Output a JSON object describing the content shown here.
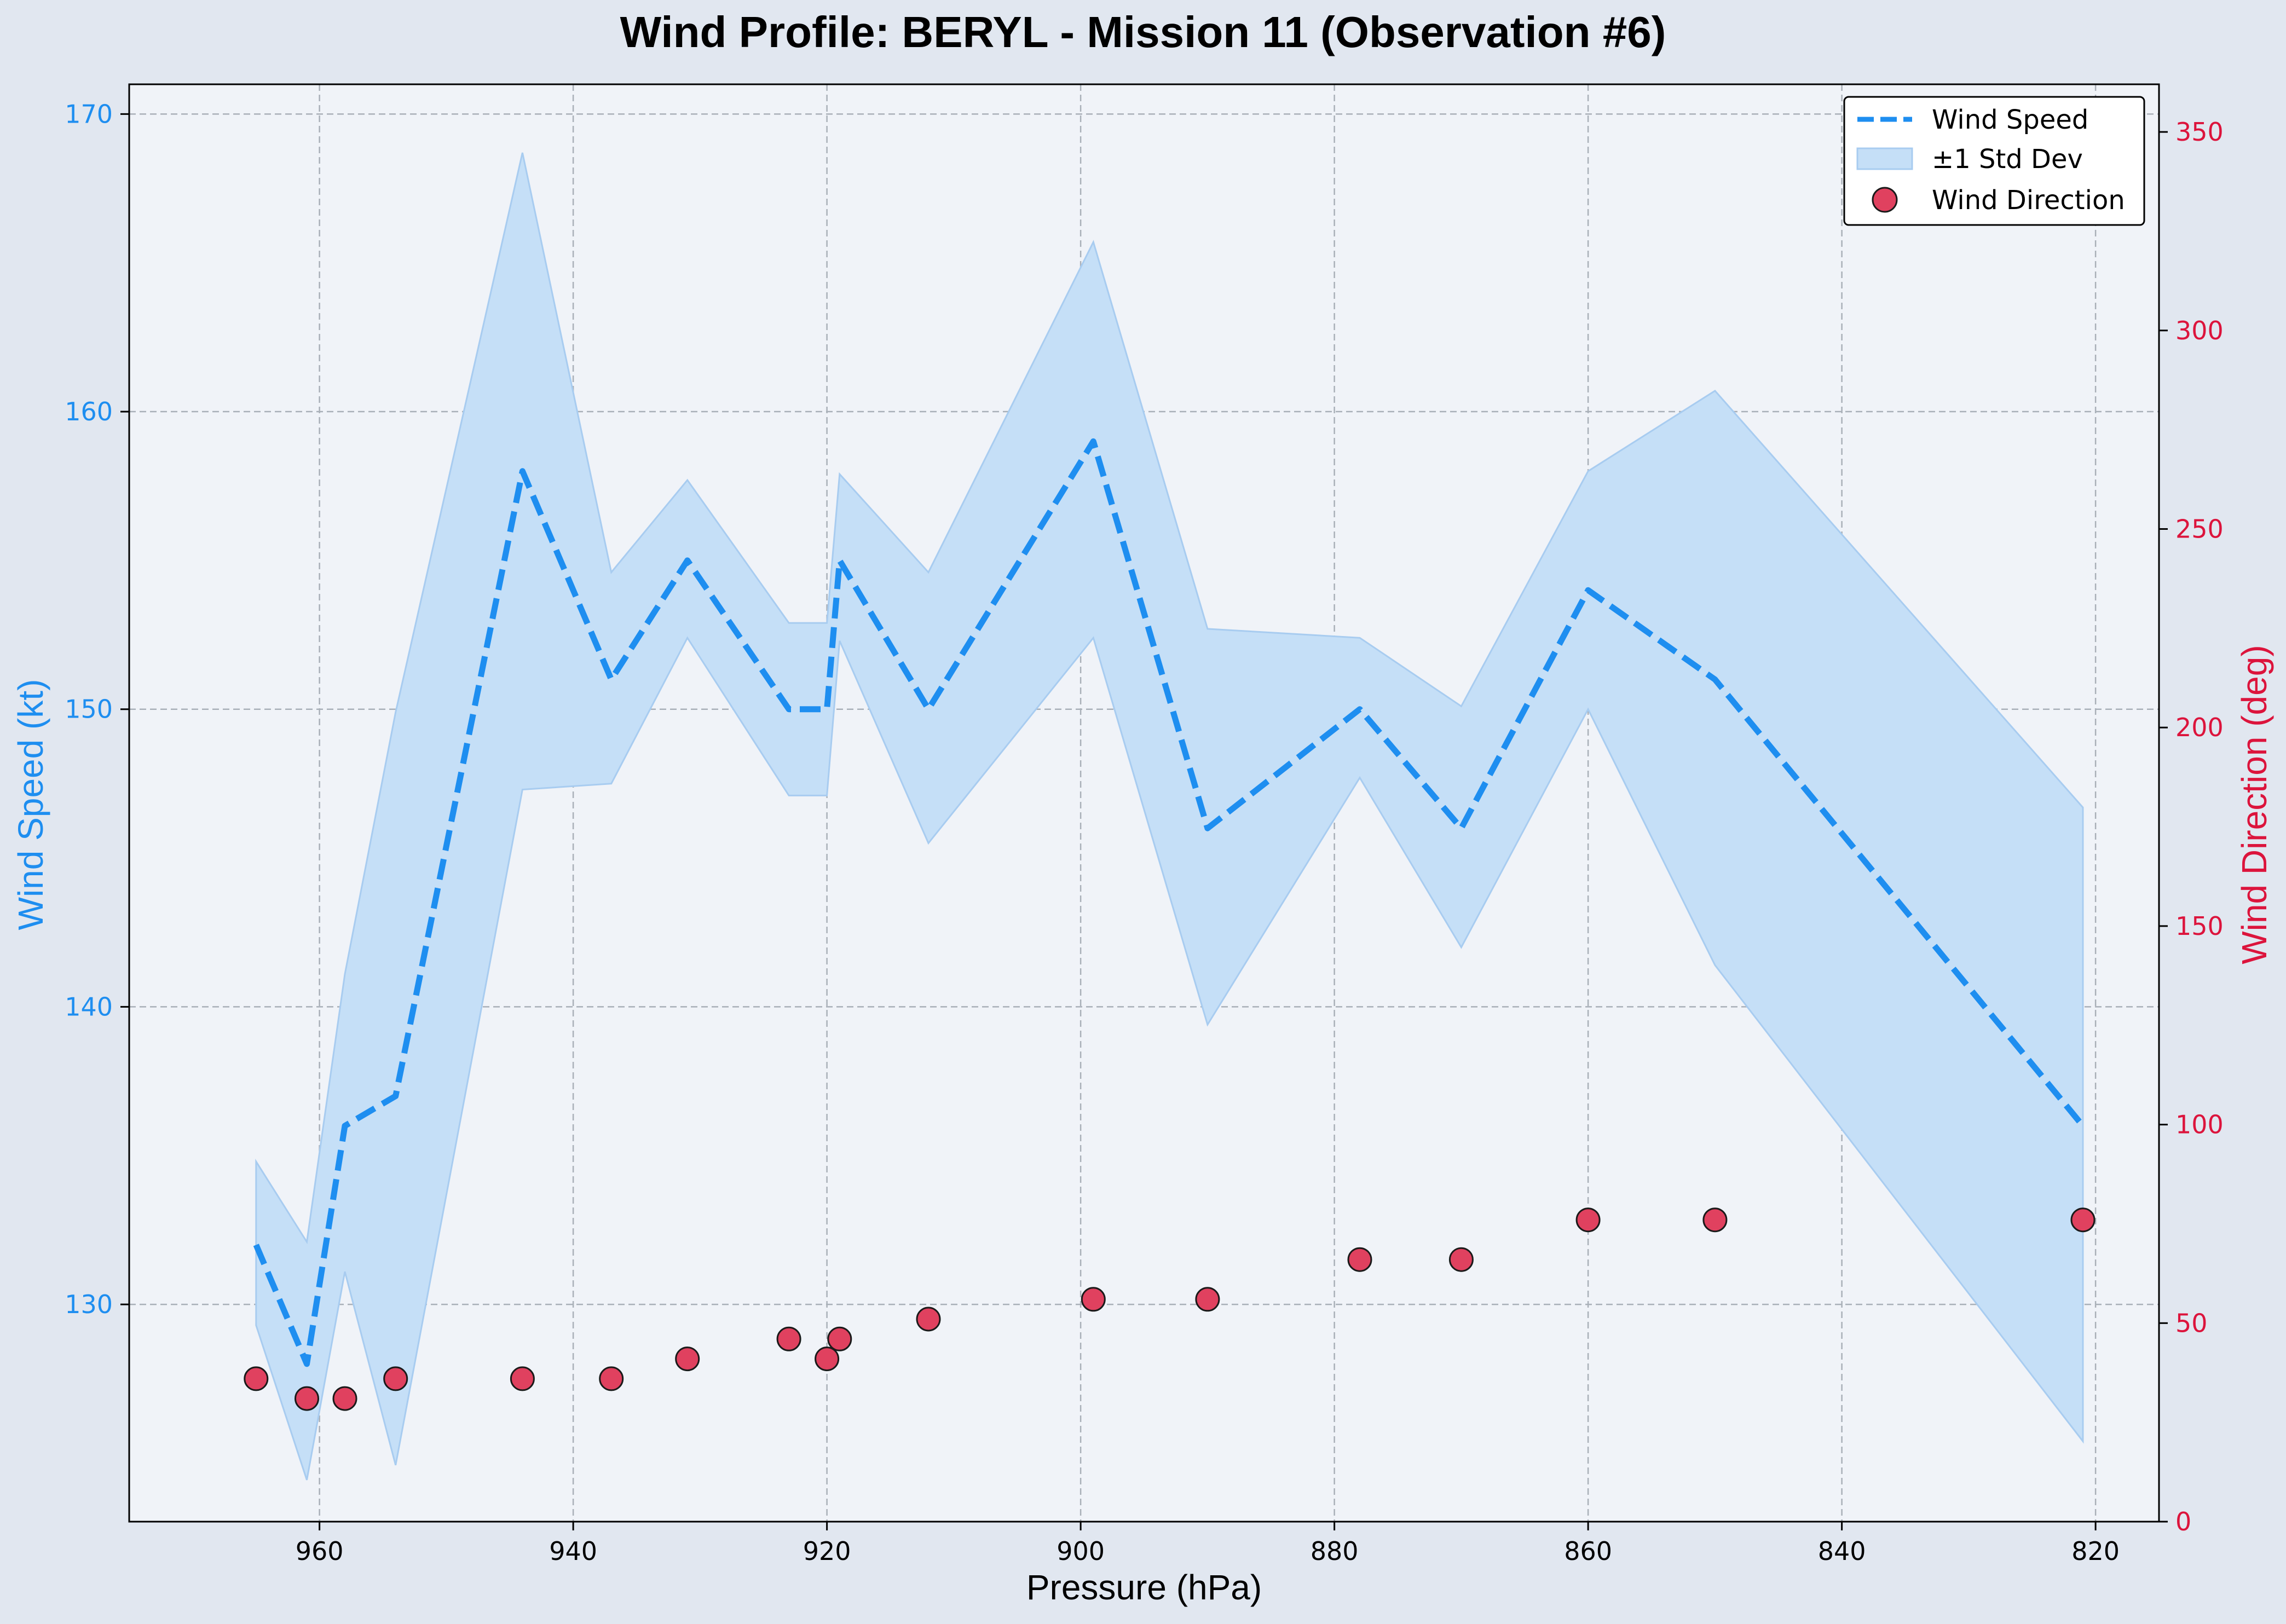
{
  "chart_data": {
    "type": "line",
    "title": "Wind Profile: BERYL - Mission 11 (Observation #6)",
    "xlabel": "Pressure (hPa)",
    "ylabel_left": "Wind Speed (kt)",
    "ylabel_right": "Wind Direction (deg)",
    "x_inverted": true,
    "xlim": [
      975,
      815
    ],
    "ylim_left": [
      122.7,
      171
    ],
    "ylim_right": [
      0,
      362
    ],
    "x_ticks": [
      "960",
      "940",
      "920",
      "900",
      "880",
      "860",
      "840",
      "820"
    ],
    "y_left_ticks": [
      "130",
      "140",
      "150",
      "160",
      "170"
    ],
    "y_right_ticks": [
      "0",
      "50",
      "100",
      "150",
      "200",
      "250",
      "300",
      "350"
    ],
    "grid": true,
    "legend_position": "upper right",
    "colors": {
      "speed": "#1e8ef0",
      "band": "#c5dff7",
      "band_edge": "#a8ccf0",
      "direction": "#e0415f",
      "direction_axis": "#dc143c",
      "plot_bg": "#f0f3f8",
      "fig_bg": "#e1e7f0"
    },
    "legend": [
      "Wind Speed",
      "±1 Std Dev",
      "Wind Direction"
    ],
    "series": [
      {
        "name": "Wind Speed",
        "axis": "left",
        "x": [
          965,
          961,
          958,
          954,
          944,
          937,
          931,
          923,
          920,
          919,
          912,
          899,
          890,
          878,
          870,
          860,
          850,
          821
        ],
        "y": [
          132,
          128,
          136,
          137,
          158,
          151,
          155,
          150,
          150,
          155,
          150,
          159,
          146,
          150,
          146,
          154,
          151,
          136
        ]
      },
      {
        "name": "±1 Std Dev",
        "axis": "left",
        "x": [
          965,
          961,
          958,
          954,
          944,
          937,
          931,
          923,
          920,
          919,
          912,
          899,
          890,
          878,
          870,
          860,
          850,
          821
        ],
        "upper": [
          134.8,
          132.1,
          141.1,
          149.9,
          168.7,
          154.6,
          157.7,
          152.9,
          152.9,
          157.9,
          154.6,
          165.7,
          152.7,
          152.4,
          150.1,
          158.0,
          160.7,
          146.7
        ],
        "lower": [
          129.3,
          124.1,
          131.1,
          124.6,
          147.3,
          147.5,
          152.4,
          147.1,
          147.1,
          152.3,
          145.5,
          152.4,
          139.4,
          147.7,
          142.0,
          150.0,
          141.4,
          125.4
        ]
      },
      {
        "name": "Wind Direction",
        "axis": "right",
        "x": [
          965,
          961,
          958,
          954,
          944,
          937,
          931,
          923,
          920,
          919,
          912,
          899,
          890,
          878,
          870,
          860,
          850,
          821
        ],
        "y": [
          36,
          31,
          31,
          36,
          36,
          36,
          41,
          46,
          41,
          46,
          51,
          56,
          56,
          66,
          66,
          76,
          76,
          76
        ]
      }
    ]
  }
}
